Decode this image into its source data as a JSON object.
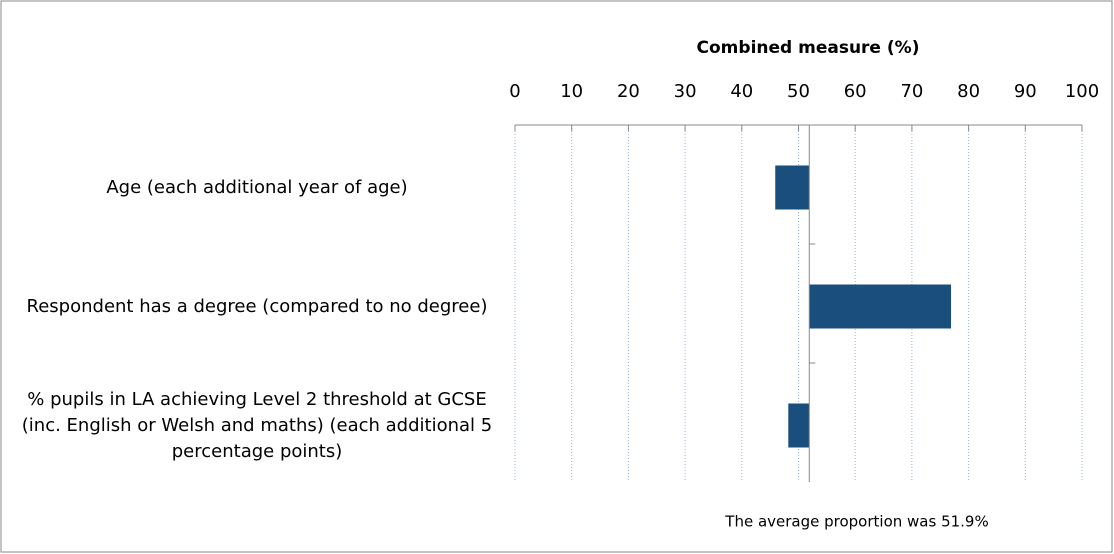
{
  "chart_data": {
    "type": "bar",
    "orientation": "horizontal",
    "title": "Combined measure (%)",
    "categories": [
      "Age (each additional year of age)",
      "Respondent has a degree (compared to no degree)",
      "% pupils in LA achieving Level 2 threshold at GCSE (inc. English or Welsh and maths) (each additional 5 percentage points)"
    ],
    "values": [
      45.9,
      76.9,
      48.2
    ],
    "baseline": 51.9,
    "color": "#1a4e7c",
    "xlim": [
      0,
      100
    ],
    "xticks": [
      0,
      10,
      20,
      30,
      40,
      50,
      60,
      70,
      80,
      90,
      100
    ],
    "grid": true,
    "annotation": "The average proportion was 51.9%"
  }
}
